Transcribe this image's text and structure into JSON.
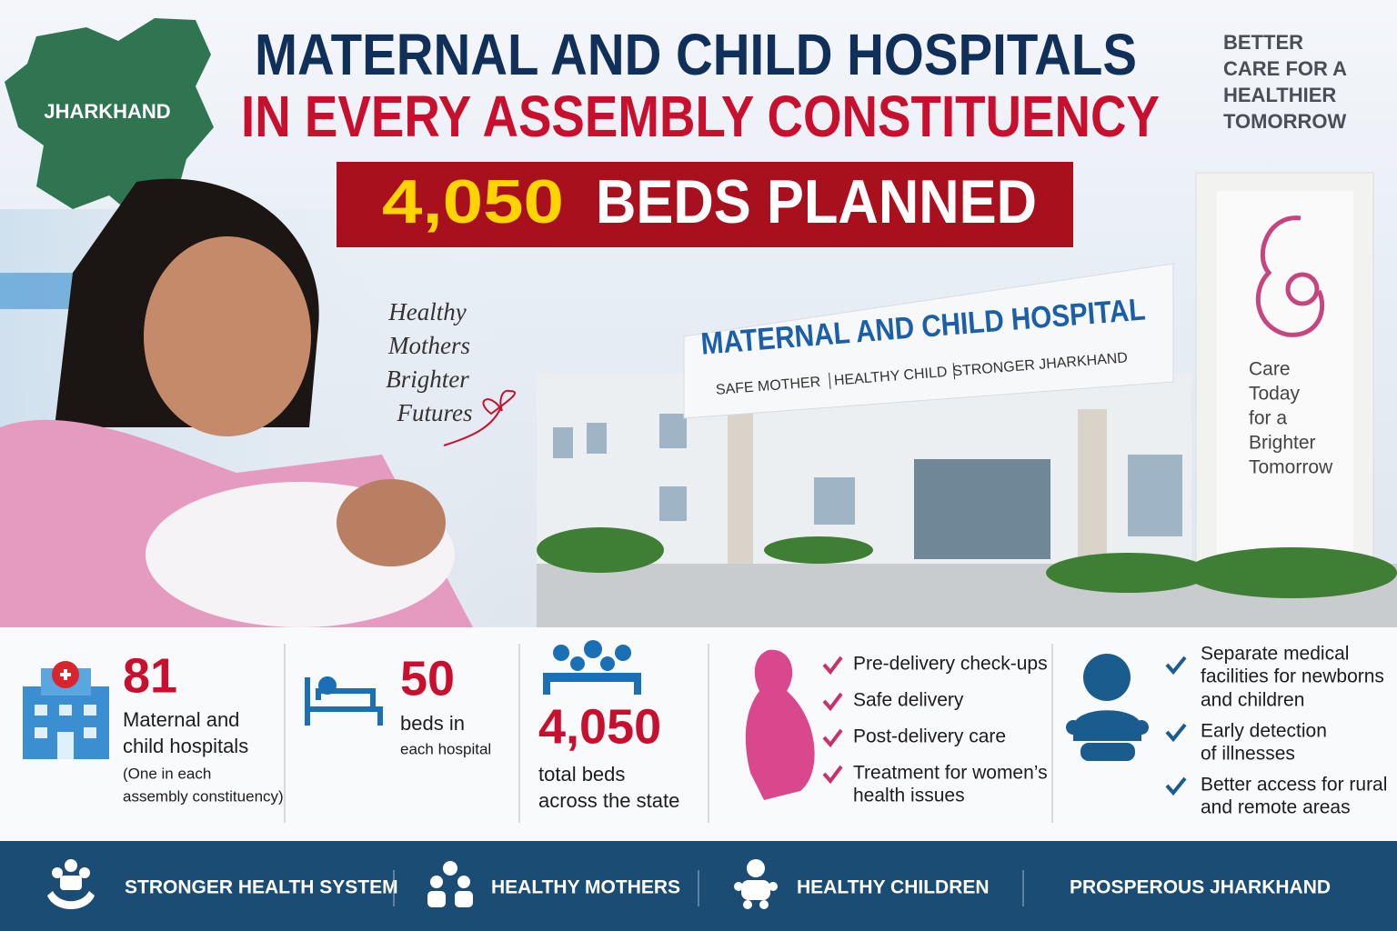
{
  "map_label": "JHARKHAND",
  "header": {
    "title_line1": "MATERNAL AND CHILD HOSPITALS",
    "title_line2": "IN EVERY ASSEMBLY CONSTITUENCY",
    "banner_number": "4,050",
    "banner_text": "BEDS PLANNED"
  },
  "tagline": [
    "BETTER",
    "CARE FOR A",
    "HEALTHIER",
    "TOMORROW"
  ],
  "script_note": [
    "Healthy",
    "Mothers",
    "Brighter",
    "Futures"
  ],
  "building": {
    "sign": "MATERNAL AND CHILD HOSPITAL",
    "sign_subtitles": [
      "SAFE MOTHER",
      "HEALTHY CHILD",
      "STRONGER JHARKHAND"
    ],
    "wall_text": [
      "Care",
      "Today",
      "for a",
      "Brighter",
      "Tomorrow"
    ]
  },
  "stats": [
    {
      "number": "81",
      "label": [
        "Maternal and",
        "child hospitals"
      ],
      "note": [
        "(One in each",
        "assembly constituency)"
      ]
    },
    {
      "number": "50",
      "label": [
        "beds in",
        "each hospital"
      ]
    },
    {
      "number": "4,050",
      "label": [
        "total beds",
        "across the state"
      ]
    }
  ],
  "mother_services": [
    [
      "Pre-delivery check-ups"
    ],
    [
      "Safe delivery"
    ],
    [
      "Post-delivery care"
    ],
    [
      "Treatment for women’s",
      "health issues"
    ]
  ],
  "child_services": [
    [
      "Separate medical",
      "facilities for newborns",
      "and children"
    ],
    [
      "Early detection",
      "of illnesses"
    ],
    [
      "Better access for rural",
      "and remote areas"
    ]
  ],
  "footer": [
    "STRONGER HEALTH SYSTEM",
    "HEALTHY MOTHERS",
    "HEALTHY CHILDREN",
    "PROSPEROUS JHARKHAND"
  ]
}
